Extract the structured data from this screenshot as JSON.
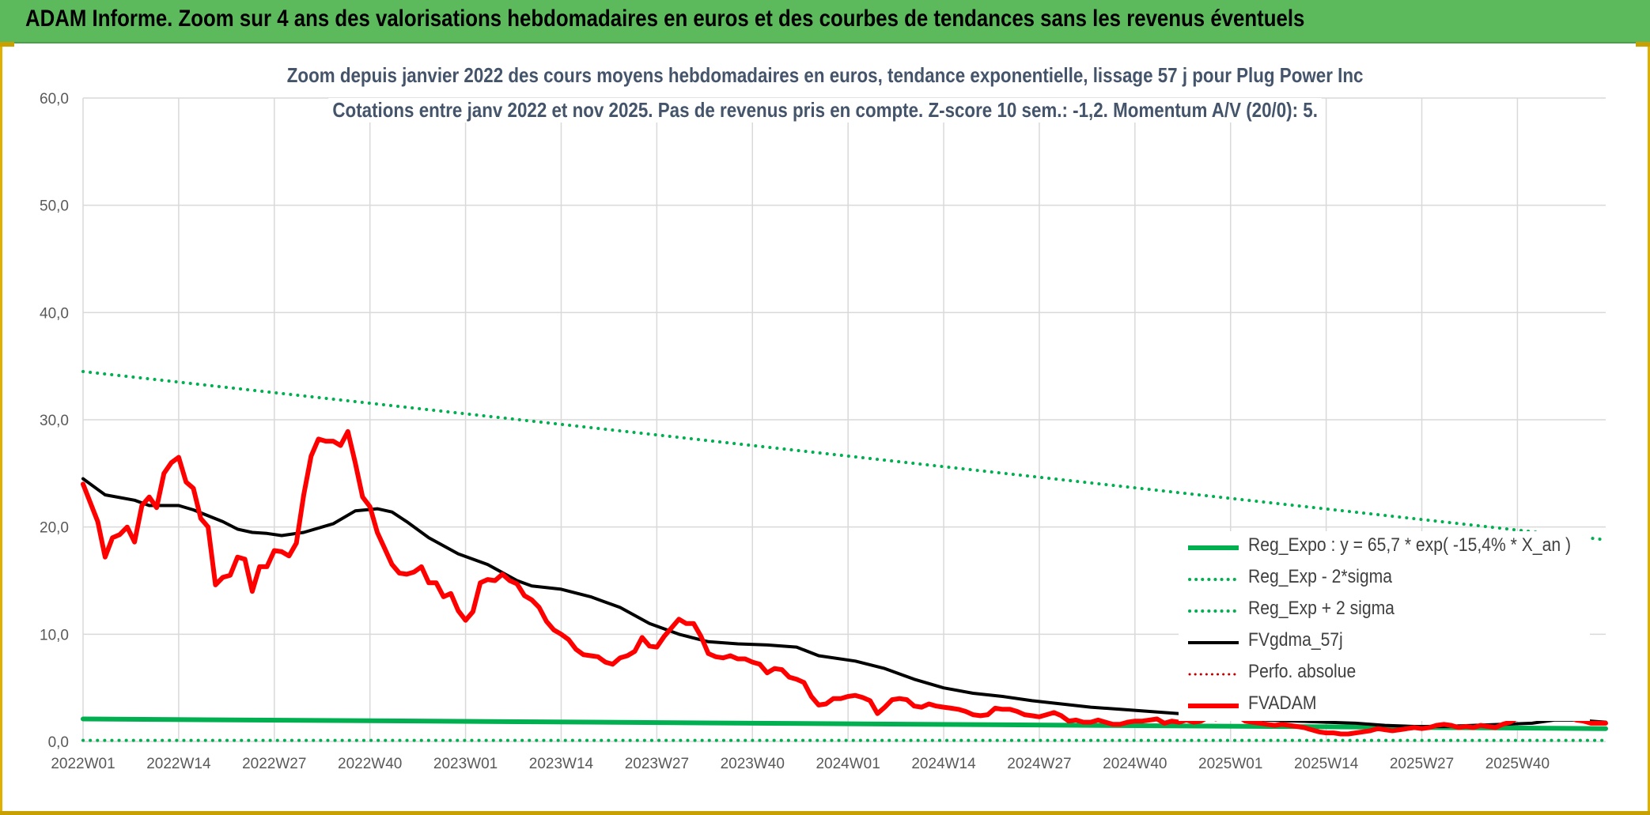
{
  "banner": {
    "title": "ADAM Informe. Zoom sur 4 ans des valorisations hebdomadaires en euros et des courbes de tendances sans les revenus éventuels"
  },
  "colors": {
    "banner_bg": "#5cba5c",
    "green_series": "#00b050",
    "fv_adam": "#ff0000",
    "fvgdma": "#000000",
    "perfo": "#c00000",
    "subtitle_text": "#44546a",
    "gold_accent": "#c8a000"
  },
  "chart_data": {
    "type": "line",
    "title": "Zoom depuis janvier 2022 des cours moyens hebdomadaires en euros, tendance exponentielle, lissage 57 j pour Plug Power Inc",
    "subtitle": "Cotations entre janv 2022 et nov 2025. Pas de revenus pris en compte. Z-score 10 sem.: -1,2. Momentum A/V (20/0): 5.",
    "xlabel": "",
    "ylabel": "",
    "ylim": [
      0,
      60
    ],
    "yticks": [
      "0,0",
      "10,0",
      "20,0",
      "30,0",
      "40,0",
      "50,0",
      "60,0"
    ],
    "xticks": [
      "2022W01",
      "2022W14",
      "2022W27",
      "2022W40",
      "2023W01",
      "2023W14",
      "2023W27",
      "2023W40",
      "2024W01",
      "2024W14",
      "2024W27",
      "2024W40",
      "2025W01",
      "2025W14",
      "2025W27",
      "2025W40"
    ],
    "xtick_weeks": [
      1,
      14,
      27,
      40,
      53,
      66,
      79,
      92,
      105,
      118,
      131,
      144,
      157,
      170,
      183,
      196
    ],
    "x_range_weeks": [
      1,
      208
    ],
    "grid": true,
    "legend_position": "bottom-right",
    "series": [
      {
        "name": "Reg_Expo : y = 65,7 * exp( -15,4% *  X_an )",
        "style": "solid",
        "color": "#00b050",
        "width": 6,
        "points": [
          [
            1,
            2.1
          ],
          [
            208,
            1.2
          ]
        ]
      },
      {
        "name": "Reg_Exp - 2*sigma",
        "style": "dotted",
        "color": "#00b050",
        "width": 4,
        "points": [
          [
            1,
            0.1
          ],
          [
            208,
            0.1
          ]
        ]
      },
      {
        "name": "Reg_Exp + 2 sigma",
        "style": "dotted",
        "color": "#00b050",
        "width": 4,
        "points": [
          [
            1,
            34.5
          ],
          [
            208,
            18.8
          ]
        ]
      },
      {
        "name": "FVgdma_57j",
        "style": "solid",
        "color": "#000000",
        "width": 4,
        "points": [
          [
            1,
            24.5
          ],
          [
            4,
            23.0
          ],
          [
            8,
            22.5
          ],
          [
            10,
            22.0
          ],
          [
            14,
            22.0
          ],
          [
            16,
            21.6
          ],
          [
            20,
            20.5
          ],
          [
            22,
            19.8
          ],
          [
            24,
            19.5
          ],
          [
            26,
            19.4
          ],
          [
            28,
            19.2
          ],
          [
            31,
            19.5
          ],
          [
            35,
            20.3
          ],
          [
            38,
            21.5
          ],
          [
            41,
            21.7
          ],
          [
            43,
            21.4
          ],
          [
            45,
            20.5
          ],
          [
            48,
            19.0
          ],
          [
            52,
            17.5
          ],
          [
            56,
            16.5
          ],
          [
            60,
            15.0
          ],
          [
            62,
            14.5
          ],
          [
            66,
            14.2
          ],
          [
            70,
            13.5
          ],
          [
            74,
            12.5
          ],
          [
            78,
            11.0
          ],
          [
            82,
            10.0
          ],
          [
            86,
            9.3
          ],
          [
            90,
            9.1
          ],
          [
            94,
            9.0
          ],
          [
            98,
            8.8
          ],
          [
            101,
            8.0
          ],
          [
            106,
            7.5
          ],
          [
            110,
            6.8
          ],
          [
            114,
            5.8
          ],
          [
            118,
            5.0
          ],
          [
            122,
            4.5
          ],
          [
            126,
            4.2
          ],
          [
            130,
            3.8
          ],
          [
            134,
            3.5
          ],
          [
            138,
            3.2
          ],
          [
            142,
            3.0
          ],
          [
            146,
            2.8
          ],
          [
            150,
            2.6
          ],
          [
            154,
            2.4
          ],
          [
            158,
            2.2
          ],
          [
            162,
            2.0
          ],
          [
            166,
            1.9
          ],
          [
            170,
            1.8
          ],
          [
            174,
            1.7
          ],
          [
            178,
            1.5
          ],
          [
            182,
            1.4
          ],
          [
            186,
            1.4
          ],
          [
            190,
            1.5
          ],
          [
            194,
            1.6
          ],
          [
            198,
            1.7
          ],
          [
            201,
            2.0
          ],
          [
            204,
            2.0
          ],
          [
            208,
            1.8
          ]
        ]
      },
      {
        "name": "Perfo. absolue",
        "style": "dotted",
        "color": "#c00000",
        "width": 3,
        "points": []
      },
      {
        "name": "FVADAM",
        "style": "solid",
        "color": "#ff0000",
        "width": 6,
        "points": [
          [
            1,
            24.0
          ],
          [
            3,
            20.5
          ],
          [
            4,
            17.2
          ],
          [
            5,
            19.0
          ],
          [
            6,
            19.3
          ],
          [
            7,
            20.0
          ],
          [
            8,
            18.6
          ],
          [
            9,
            22.0
          ],
          [
            10,
            22.8
          ],
          [
            11,
            21.8
          ],
          [
            12,
            25.0
          ],
          [
            13,
            26.0
          ],
          [
            14,
            26.5
          ],
          [
            15,
            24.2
          ],
          [
            16,
            23.6
          ],
          [
            17,
            20.8
          ],
          [
            18,
            20.0
          ],
          [
            19,
            14.6
          ],
          [
            20,
            15.3
          ],
          [
            21,
            15.5
          ],
          [
            22,
            17.2
          ],
          [
            23,
            17.0
          ],
          [
            24,
            14.0
          ],
          [
            25,
            16.3
          ],
          [
            26,
            16.3
          ],
          [
            27,
            17.8
          ],
          [
            28,
            17.7
          ],
          [
            29,
            17.3
          ],
          [
            30,
            18.5
          ],
          [
            31,
            23.0
          ],
          [
            32,
            26.6
          ],
          [
            33,
            28.2
          ],
          [
            34,
            28.0
          ],
          [
            35,
            28.0
          ],
          [
            36,
            27.6
          ],
          [
            37,
            28.9
          ],
          [
            38,
            26.0
          ],
          [
            39,
            22.8
          ],
          [
            40,
            21.9
          ],
          [
            41,
            19.5
          ],
          [
            42,
            18.0
          ],
          [
            43,
            16.5
          ],
          [
            44,
            15.7
          ],
          [
            45,
            15.6
          ],
          [
            46,
            15.8
          ],
          [
            47,
            16.3
          ],
          [
            48,
            14.8
          ],
          [
            49,
            14.8
          ],
          [
            50,
            13.5
          ],
          [
            51,
            13.8
          ],
          [
            52,
            12.2
          ],
          [
            53,
            11.3
          ],
          [
            54,
            12.1
          ],
          [
            55,
            14.8
          ],
          [
            56,
            15.1
          ],
          [
            57,
            15.0
          ],
          [
            58,
            15.6
          ],
          [
            59,
            15.0
          ],
          [
            60,
            14.7
          ],
          [
            61,
            13.6
          ],
          [
            62,
            13.2
          ],
          [
            63,
            12.5
          ],
          [
            64,
            11.2
          ],
          [
            65,
            10.4
          ],
          [
            66,
            10.0
          ],
          [
            67,
            9.5
          ],
          [
            68,
            8.6
          ],
          [
            69,
            8.1
          ],
          [
            70,
            8.0
          ],
          [
            71,
            7.9
          ],
          [
            72,
            7.4
          ],
          [
            73,
            7.2
          ],
          [
            74,
            7.8
          ],
          [
            75,
            8.0
          ],
          [
            76,
            8.4
          ],
          [
            77,
            9.7
          ],
          [
            78,
            8.9
          ],
          [
            79,
            8.8
          ],
          [
            80,
            9.8
          ],
          [
            81,
            10.6
          ],
          [
            82,
            11.4
          ],
          [
            83,
            11.0
          ],
          [
            84,
            11.0
          ],
          [
            85,
            9.8
          ],
          [
            86,
            8.2
          ],
          [
            87,
            7.9
          ],
          [
            88,
            7.8
          ],
          [
            89,
            8.0
          ],
          [
            90,
            7.7
          ],
          [
            91,
            7.7
          ],
          [
            92,
            7.4
          ],
          [
            93,
            7.2
          ],
          [
            94,
            6.4
          ],
          [
            95,
            6.8
          ],
          [
            96,
            6.7
          ],
          [
            97,
            6.0
          ],
          [
            98,
            5.8
          ],
          [
            99,
            5.5
          ],
          [
            100,
            4.2
          ],
          [
            101,
            3.4
          ],
          [
            102,
            3.5
          ],
          [
            103,
            4.0
          ],
          [
            104,
            4.0
          ],
          [
            105,
            4.2
          ],
          [
            106,
            4.3
          ],
          [
            107,
            4.1
          ],
          [
            108,
            3.8
          ],
          [
            109,
            2.6
          ],
          [
            110,
            3.2
          ],
          [
            111,
            3.9
          ],
          [
            112,
            4.0
          ],
          [
            113,
            3.9
          ],
          [
            114,
            3.3
          ],
          [
            115,
            3.2
          ],
          [
            116,
            3.5
          ],
          [
            117,
            3.3
          ],
          [
            118,
            3.2
          ],
          [
            119,
            3.1
          ],
          [
            120,
            3.0
          ],
          [
            121,
            2.8
          ],
          [
            122,
            2.5
          ],
          [
            123,
            2.4
          ],
          [
            124,
            2.5
          ],
          [
            125,
            3.1
          ],
          [
            126,
            3.0
          ],
          [
            127,
            3.0
          ],
          [
            128,
            2.8
          ],
          [
            129,
            2.5
          ],
          [
            130,
            2.4
          ],
          [
            131,
            2.3
          ],
          [
            132,
            2.5
          ],
          [
            133,
            2.7
          ],
          [
            134,
            2.4
          ],
          [
            135,
            1.9
          ],
          [
            136,
            2.0
          ],
          [
            137,
            1.8
          ],
          [
            138,
            1.8
          ],
          [
            139,
            2.0
          ],
          [
            140,
            1.8
          ],
          [
            141,
            1.6
          ],
          [
            142,
            1.6
          ],
          [
            143,
            1.8
          ],
          [
            144,
            1.9
          ],
          [
            145,
            1.9
          ],
          [
            146,
            2.0
          ],
          [
            147,
            2.1
          ],
          [
            148,
            1.7
          ],
          [
            149,
            1.9
          ],
          [
            150,
            1.8
          ],
          [
            151,
            2.0
          ],
          [
            152,
            1.8
          ],
          [
            153,
            1.9
          ],
          [
            154,
            2.3
          ],
          [
            155,
            2.1
          ],
          [
            156,
            2.5
          ],
          [
            157,
            2.7
          ],
          [
            158,
            2.4
          ],
          [
            159,
            1.9
          ],
          [
            160,
            1.8
          ],
          [
            161,
            1.7
          ],
          [
            162,
            1.6
          ],
          [
            163,
            1.5
          ],
          [
            164,
            1.6
          ],
          [
            165,
            1.5
          ],
          [
            166,
            1.4
          ],
          [
            167,
            1.3
          ],
          [
            168,
            1.1
          ],
          [
            169,
            0.9
          ],
          [
            170,
            0.8
          ],
          [
            171,
            0.8
          ],
          [
            172,
            0.7
          ],
          [
            173,
            0.7
          ],
          [
            174,
            0.8
          ],
          [
            175,
            0.9
          ],
          [
            176,
            1.0
          ],
          [
            177,
            1.2
          ],
          [
            178,
            1.1
          ],
          [
            179,
            1.0
          ],
          [
            180,
            1.1
          ],
          [
            181,
            1.2
          ],
          [
            182,
            1.3
          ],
          [
            183,
            1.2
          ],
          [
            184,
            1.3
          ],
          [
            185,
            1.5
          ],
          [
            186,
            1.6
          ],
          [
            187,
            1.5
          ],
          [
            188,
            1.3
          ],
          [
            189,
            1.4
          ],
          [
            190,
            1.3
          ],
          [
            191,
            1.5
          ],
          [
            192,
            1.4
          ],
          [
            193,
            1.3
          ],
          [
            194,
            1.6
          ],
          [
            195,
            1.8
          ],
          [
            196,
            2.2
          ],
          [
            197,
            2.5
          ],
          [
            198,
            3.3
          ],
          [
            199,
            3.3
          ],
          [
            200,
            2.7
          ],
          [
            201,
            2.4
          ],
          [
            202,
            2.3
          ],
          [
            203,
            2.3
          ],
          [
            204,
            2.0
          ],
          [
            205,
            1.9
          ],
          [
            206,
            1.7
          ],
          [
            207,
            1.7
          ],
          [
            208,
            1.7
          ]
        ]
      }
    ]
  }
}
